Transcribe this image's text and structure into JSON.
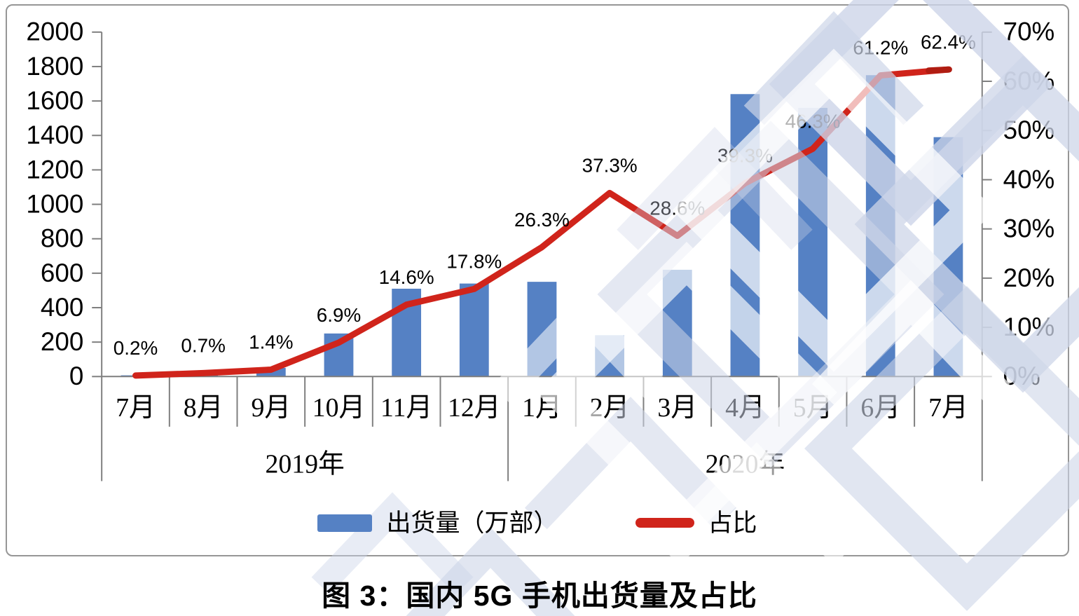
{
  "figure": {
    "caption": "图 3：国内 5G 手机出货量及占比"
  },
  "legend": {
    "bars_label": "出货量（万部）",
    "line_label": "占比"
  },
  "colors": {
    "bar": "#5581c4",
    "line": "#d0241b",
    "line_end_cap": "#b01d12",
    "axis": "#7f7f7f",
    "box_border": "#969696",
    "text": "#000000",
    "watermark": "#cdd5e8"
  },
  "chart_data": {
    "type": "bar",
    "subtype": "combo-bar-line-dual-axis",
    "categories": [
      "7月",
      "8月",
      "9月",
      "10月",
      "11月",
      "12月",
      "1月",
      "2月",
      "3月",
      "4月",
      "5月",
      "6月",
      "7月"
    ],
    "category_groups": [
      {
        "label": "2019年",
        "from": 0,
        "to": 5
      },
      {
        "label": "2020年",
        "from": 6,
        "to": 12
      }
    ],
    "series": [
      {
        "name": "出货量（万部）",
        "type": "bar",
        "axis": "left",
        "values": [
          7,
          22,
          50,
          250,
          510,
          540,
          550,
          240,
          620,
          1640,
          1560,
          1750,
          1390
        ]
      },
      {
        "name": "占比",
        "type": "line",
        "axis": "right",
        "values": [
          0.2,
          0.7,
          1.4,
          6.9,
          14.6,
          17.8,
          26.3,
          37.3,
          28.6,
          39.3,
          46.3,
          61.2,
          62.4
        ],
        "point_labels": [
          "0.2%",
          "0.7%",
          "1.4%",
          "6.9%",
          "14.6%",
          "17.8%",
          "26.3%",
          "37.3%",
          "28.6%",
          "39.3%",
          "46.3%",
          "61.2%",
          "62.4%"
        ]
      }
    ],
    "left_axis": {
      "min": 0,
      "max": 2000,
      "step": 200,
      "ticks": [
        "0",
        "200",
        "400",
        "600",
        "800",
        "1000",
        "1200",
        "1400",
        "1600",
        "1800",
        "2000"
      ]
    },
    "right_axis": {
      "min": 0,
      "max": 70,
      "step": 10,
      "ticks": [
        "0%",
        "10%",
        "20%",
        "30%",
        "40%",
        "50%",
        "60%",
        "70%"
      ]
    },
    "grid": "off",
    "legend_position": "bottom",
    "title": "图 3：国内 5G 手机出货量及占比"
  }
}
